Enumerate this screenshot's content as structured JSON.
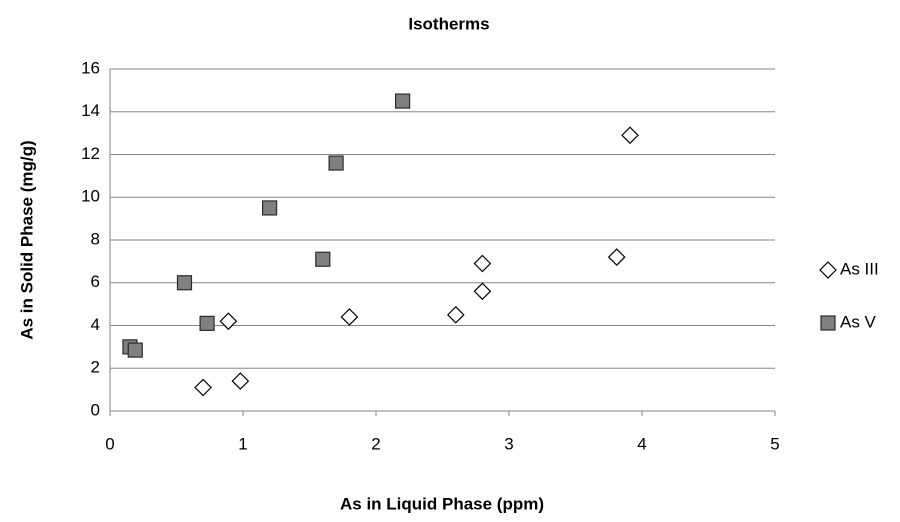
{
  "chart_data": {
    "type": "scatter",
    "title": "Isotherms",
    "x_label": "As in Liquid Phase (ppm)",
    "y_label": "As in Solid Phase (mg/g)",
    "xlim": [
      0,
      5
    ],
    "xticks": [
      0,
      1,
      2,
      3,
      4,
      5
    ],
    "ylim": [
      0,
      16
    ],
    "yticks": [
      0,
      2,
      4,
      6,
      8,
      10,
      12,
      14,
      16
    ],
    "grid": true,
    "legend": "right",
    "series": [
      {
        "name": "As III",
        "color": "#ffffff",
        "marker": "diamond",
        "x": [
          0.7,
          0.98,
          0.89,
          1.8,
          2.6,
          2.8,
          2.8,
          3.81,
          3.91
        ],
        "values": [
          1.1,
          1.4,
          4.2,
          4.4,
          4.5,
          5.6,
          6.9,
          7.2,
          12.9
        ]
      },
      {
        "name": "As V",
        "color": "#808080",
        "marker": "square",
        "x": [
          0.15,
          0.19,
          0.56,
          0.73,
          1.2,
          1.6,
          1.7,
          2.2
        ],
        "values": [
          3.0,
          2.85,
          6.0,
          4.1,
          9.5,
          7.1,
          11.6,
          14.5
        ]
      }
    ]
  }
}
